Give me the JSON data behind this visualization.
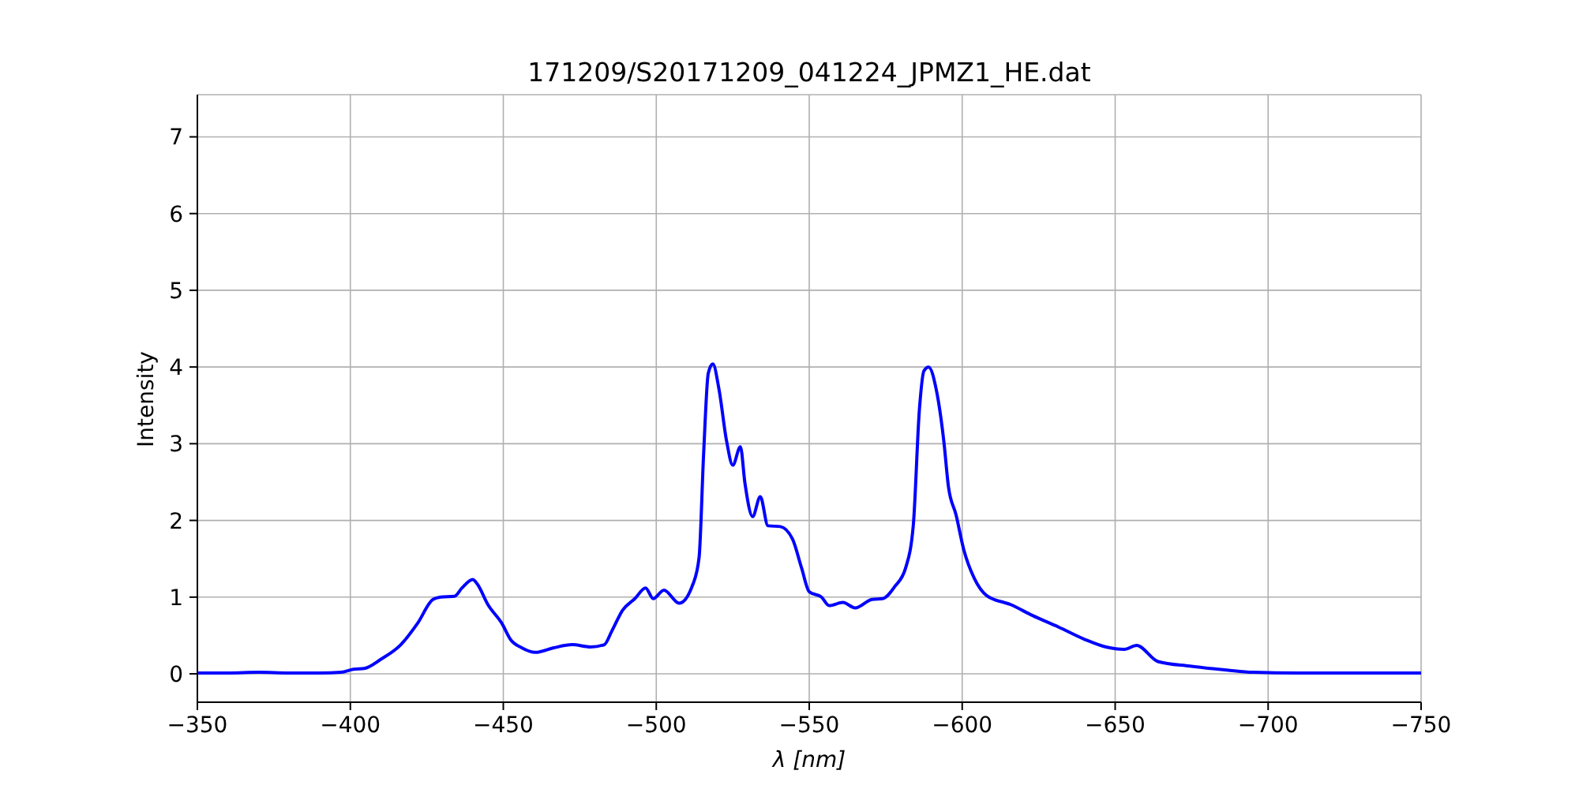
{
  "chart_data": {
    "type": "line",
    "title": "171209/S20171209_041224_JPMZ1_HE.dat",
    "xlabel": "λ [nm]",
    "ylabel": "Intensity",
    "x": [
      -350,
      -360,
      -370,
      -380,
      -390,
      -397,
      -401,
      -404.5,
      -410,
      -416.5,
      -422,
      -427,
      -429.5,
      -434,
      -436.5,
      -440,
      -441.5,
      -445,
      -449.5,
      -452.5,
      -456,
      -460.5,
      -466.5,
      -472.5,
      -478.5,
      -483,
      -485.5,
      -489,
      -493,
      -496.5,
      -499,
      -502.5,
      -507.5,
      -512,
      -514,
      -515.5,
      -517,
      -518.5,
      -520.5,
      -523,
      -525,
      -527.5,
      -529,
      -531.5,
      -534,
      -536.5,
      -540.5,
      -544.5,
      -547.5,
      -550,
      -554,
      -556.5,
      -561,
      -565,
      -570.5,
      -574,
      -578,
      -581.5,
      -584,
      -586,
      -587.5,
      -589,
      -591.5,
      -594,
      -595.5,
      -598,
      -600.5,
      -604,
      -608,
      -616,
      -623,
      -631.5,
      -640,
      -647,
      -653,
      -657,
      -664,
      -674.5,
      -686.5,
      -695,
      -710,
      -730,
      -750
    ],
    "values": [
      0.01,
      0.01,
      0.02,
      0.01,
      0.01,
      0.02,
      0.06,
      0.07,
      0.19,
      0.38,
      0.66,
      0.97,
      1.0,
      1.01,
      1.12,
      1.23,
      1.17,
      0.9,
      0.66,
      0.44,
      0.34,
      0.28,
      0.34,
      0.38,
      0.35,
      0.38,
      0.56,
      0.83,
      0.98,
      1.12,
      0.98,
      1.09,
      0.92,
      1.17,
      1.52,
      2.89,
      3.92,
      4.04,
      3.71,
      3.03,
      2.72,
      2.96,
      2.48,
      2.05,
      2.31,
      1.93,
      1.92,
      1.76,
      1.38,
      1.07,
      1.0,
      0.89,
      0.93,
      0.86,
      0.97,
      0.98,
      1.14,
      1.38,
      1.93,
      3.44,
      3.95,
      4.0,
      3.71,
      3.03,
      2.44,
      2.07,
      1.62,
      1.24,
      1.02,
      0.9,
      0.76,
      0.61,
      0.45,
      0.35,
      0.32,
      0.37,
      0.16,
      0.1,
      0.05,
      0.02,
      0.01,
      0.01,
      0.01
    ],
    "color": "#0000ff",
    "xlim": [
      -350,
      -750
    ],
    "xticks": [
      {
        "value": -350,
        "label": "−350"
      },
      {
        "value": -400,
        "label": "−400"
      },
      {
        "value": -450,
        "label": "−450"
      },
      {
        "value": -500,
        "label": "−500"
      },
      {
        "value": -550,
        "label": "−550"
      },
      {
        "value": -600,
        "label": "−600"
      },
      {
        "value": -650,
        "label": "−650"
      },
      {
        "value": -700,
        "label": "−700"
      },
      {
        "value": -750,
        "label": "−750"
      }
    ],
    "ylim": [
      -0.37,
      7.55
    ],
    "yticks": [
      0,
      1,
      2,
      3,
      4,
      5,
      6,
      7
    ],
    "grid": true
  }
}
